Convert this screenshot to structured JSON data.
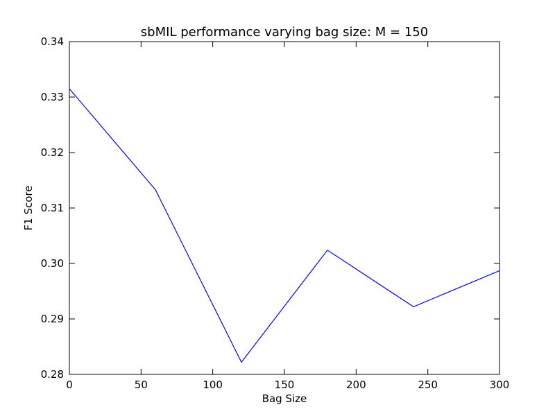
{
  "chart_data": {
    "type": "line",
    "title": "sbMIL performance varying bag size: M = 150",
    "xlabel": "Bag Size",
    "ylabel": "F1 Score",
    "xlim": [
      0,
      300
    ],
    "ylim": [
      0.28,
      0.34
    ],
    "xticks": [
      0,
      50,
      100,
      150,
      200,
      250,
      300
    ],
    "xtick_labels": [
      "0",
      "50",
      "100",
      "150",
      "200",
      "250",
      "300"
    ],
    "yticks": [
      0.28,
      0.29,
      0.3,
      0.31,
      0.32,
      0.33,
      0.34
    ],
    "ytick_labels": [
      "0.28",
      "0.29",
      "0.30",
      "0.31",
      "0.32",
      "0.33",
      "0.34"
    ],
    "grid": false,
    "series": [
      {
        "color": "#0000ff",
        "x": [
          0,
          60,
          120,
          180,
          240,
          300
        ],
        "y": [
          0.3315,
          0.3133,
          0.2822,
          0.3024,
          0.2922,
          0.2987
        ]
      }
    ]
  }
}
